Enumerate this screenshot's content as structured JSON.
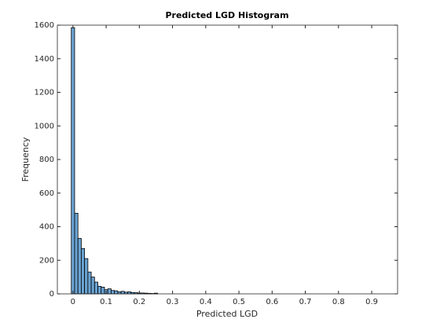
{
  "chart_data": {
    "type": "histogram",
    "title": "Predicted LGD Histogram",
    "x_label": "Predicted LGD",
    "y_label": "Frequency",
    "bins": [
      -0.005,
      0.005,
      0.015,
      0.025,
      0.035,
      0.045,
      0.055,
      0.065,
      0.075,
      0.085,
      0.095,
      0.105,
      0.115,
      0.125,
      0.135,
      0.145,
      0.155,
      0.165,
      0.175,
      0.185,
      0.195,
      0.205,
      0.215,
      0.225,
      0.235,
      0.245,
      0.255
    ],
    "counts": [
      1585,
      480,
      330,
      270,
      210,
      130,
      100,
      70,
      45,
      40,
      25,
      30,
      20,
      18,
      12,
      15,
      10,
      12,
      8,
      7,
      5,
      5,
      4,
      3,
      2,
      4
    ],
    "color": "#6aa3d2",
    "xlim": [
      -0.047,
      0.978
    ],
    "xticks": [
      0,
      0.1,
      0.2,
      0.3,
      0.4,
      0.5,
      0.6,
      0.7,
      0.8,
      0.9
    ],
    "ylim": [
      0,
      1600
    ],
    "yticks": [
      0,
      200,
      400,
      600,
      800,
      1000,
      1200,
      1400,
      1600
    ]
  }
}
